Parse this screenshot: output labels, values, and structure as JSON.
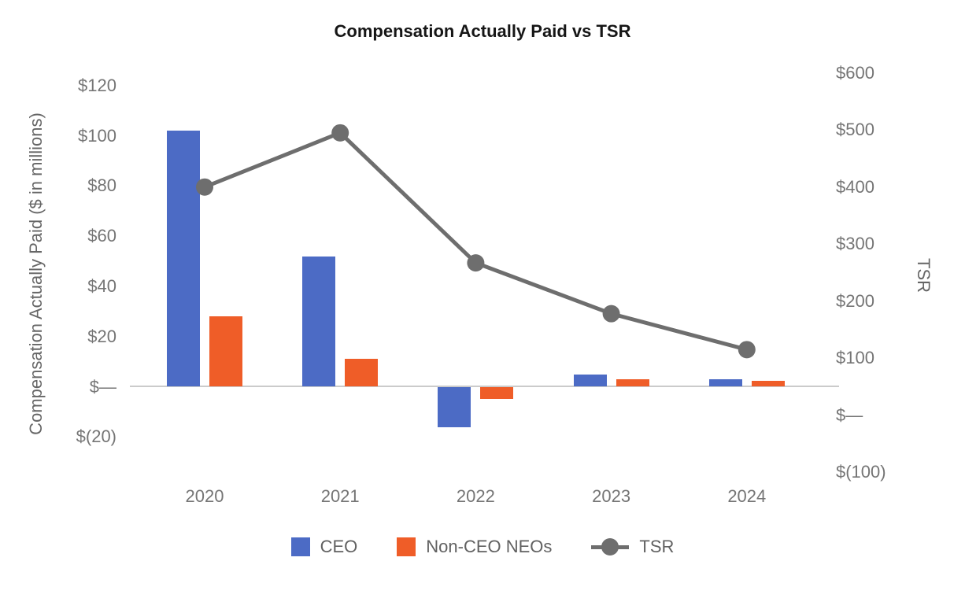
{
  "chart_data": {
    "type": "bar",
    "subtype": "combo-bar-line-dual-axis",
    "title": "Compensation Actually Paid vs TSR",
    "categories": [
      "2020",
      "2021",
      "2022",
      "2023",
      "2024"
    ],
    "series": [
      {
        "name": "CEO",
        "type": "bar",
        "axis": "left",
        "color": "#4C6BC5",
        "values": [
          102,
          52,
          -16,
          5,
          3
        ]
      },
      {
        "name": "Non-CEO NEOs",
        "type": "bar",
        "axis": "left",
        "color": "#EF5D28",
        "values": [
          28,
          11,
          -5,
          3,
          2.3
        ]
      },
      {
        "name": "TSR",
        "type": "line",
        "axis": "right",
        "color": "#6E6E6E",
        "values": [
          400,
          495,
          267,
          178,
          115
        ]
      }
    ],
    "left_axis": {
      "title": "Compensation Actually Paid ($ in millions)",
      "tick_labels": [
        "$120",
        "$100",
        "$80",
        "$60",
        "$40",
        "$20",
        "$—",
        "$(20)"
      ],
      "tick_values": [
        120,
        100,
        80,
        60,
        40,
        20,
        0,
        -20
      ],
      "range": [
        -20,
        120
      ]
    },
    "right_axis": {
      "title": "TSR",
      "tick_labels": [
        "$600",
        "$500",
        "$400",
        "$300",
        "$200",
        "$100",
        "$—",
        "$(100)"
      ],
      "tick_values": [
        600,
        500,
        400,
        300,
        200,
        100,
        0,
        -100
      ],
      "range": [
        -100,
        600
      ]
    },
    "grid": "zero-baseline-only",
    "legend_position": "bottom"
  }
}
